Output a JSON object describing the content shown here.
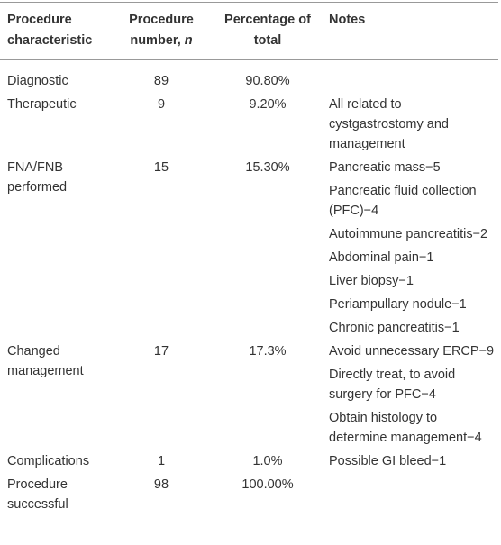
{
  "table": {
    "columns": [
      "Procedure characteristic",
      {
        "text": "Procedure number,",
        "emphasis": "n"
      },
      "Percentage of total",
      "Notes"
    ],
    "rows": [
      {
        "characteristic": "Diagnostic",
        "number": 89,
        "percentage": "90.80%",
        "notes": []
      },
      {
        "characteristic": "Therapeutic",
        "number": 9,
        "percentage": "9.20%",
        "notes": [
          "All related to cystgastrostomy and management"
        ]
      },
      {
        "characteristic": "FNA/FNB performed",
        "number": 15,
        "percentage": "15.30%",
        "notes": [
          "Pancreatic mass−5",
          "Pancreatic fluid collection (PFC)−4",
          "Autoimmune pancreatitis−2",
          "Abdominal pain−1",
          "Liver biopsy−1",
          "Periampullary nodule−1",
          "Chronic pancreatitis−1"
        ]
      },
      {
        "characteristic": "Changed management",
        "number": 17,
        "percentage": "17.3%",
        "notes": [
          "Avoid unnecessary ERCP−9",
          "Directly treat, to avoid surgery for PFC−4",
          "Obtain histology to determine management−4"
        ]
      },
      {
        "characteristic": "Complications",
        "number": 1,
        "percentage": "1.0%",
        "notes": [
          "Possible GI bleed−1"
        ]
      },
      {
        "characteristic": "Procedure successful",
        "number": 98,
        "percentage": "100.00%",
        "notes": []
      }
    ]
  }
}
